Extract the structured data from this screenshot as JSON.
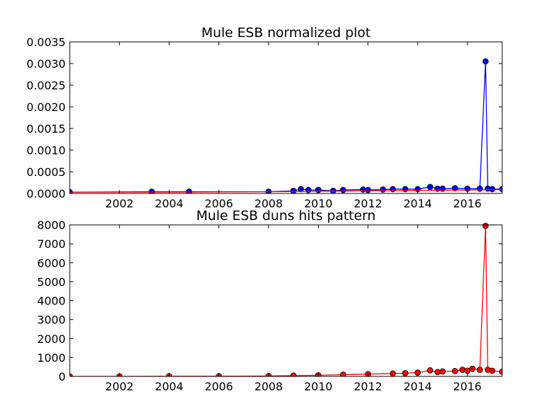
{
  "chart_data": [
    {
      "type": "line",
      "title": "Mule ESB normalized plot",
      "xlabel": "",
      "ylabel": "",
      "xlim": [
        2000.0,
        2017.4
      ],
      "ylim": [
        0,
        0.0035
      ],
      "x_ticks": [
        "2002",
        "2004",
        "2006",
        "2008",
        "2010",
        "2012",
        "2014",
        "2016"
      ],
      "y_ticks": [
        "0.0000",
        "0.0005",
        "0.0010",
        "0.0015",
        "0.0020",
        "0.0025",
        "0.0030",
        "0.0035"
      ],
      "grid": false,
      "series": [
        {
          "color": "#0000ff",
          "marker": "circle",
          "x": [
            2000.0,
            2003.3,
            2004.8,
            2008.0,
            2009.0,
            2009.3,
            2009.6,
            2010.0,
            2010.6,
            2011.0,
            2011.8,
            2012.0,
            2012.6,
            2013.0,
            2013.5,
            2014.0,
            2014.5,
            2014.8,
            2015.0,
            2015.5,
            2016.0,
            2016.5,
            2016.73,
            2016.82,
            2017.0,
            2017.4
          ],
          "y": [
            3e-05,
            4e-05,
            4e-05,
            4e-05,
            6e-05,
            0.0001,
            8e-05,
            8e-05,
            6e-05,
            8e-05,
            9e-05,
            8e-05,
            9e-05,
            0.0001,
            0.0001,
            0.0001,
            0.00015,
            0.00011,
            0.00011,
            0.00012,
            0.00011,
            0.00011,
            0.00305,
            0.00011,
            0.0001,
            0.0001
          ]
        },
        {
          "color": "#ff0000",
          "marker": "none",
          "x": [
            2000.0,
            2004.0,
            2008.0,
            2012.0,
            2016.0,
            2017.4
          ],
          "y": [
            3e-05,
            3e-05,
            4e-05,
            6e-05,
            8e-05,
            9e-05
          ]
        }
      ]
    },
    {
      "type": "line",
      "title": "Mule ESB duns hits pattern",
      "xlabel": "",
      "ylabel": "",
      "xlim": [
        2000.0,
        2017.4
      ],
      "ylim": [
        0,
        8000
      ],
      "x_ticks": [
        "2002",
        "2004",
        "2006",
        "2008",
        "2010",
        "2012",
        "2014",
        "2016"
      ],
      "y_ticks": [
        "0",
        "1000",
        "2000",
        "3000",
        "4000",
        "5000",
        "6000",
        "7000",
        "8000"
      ],
      "grid": false,
      "series": [
        {
          "color": "#ff0000",
          "marker": "circle",
          "x": [
            2000.0,
            2002.0,
            2004.0,
            2006.0,
            2008.0,
            2009.0,
            2010.0,
            2011.0,
            2012.0,
            2013.0,
            2013.5,
            2014.0,
            2014.5,
            2014.8,
            2015.0,
            2015.5,
            2015.8,
            2016.0,
            2016.2,
            2016.5,
            2016.73,
            2016.82,
            2017.0,
            2017.4
          ],
          "y": [
            0,
            0,
            10,
            10,
            20,
            40,
            60,
            90,
            120,
            150,
            170,
            200,
            320,
            230,
            260,
            280,
            350,
            300,
            400,
            350,
            7950,
            350,
            300,
            250
          ]
        }
      ]
    }
  ]
}
